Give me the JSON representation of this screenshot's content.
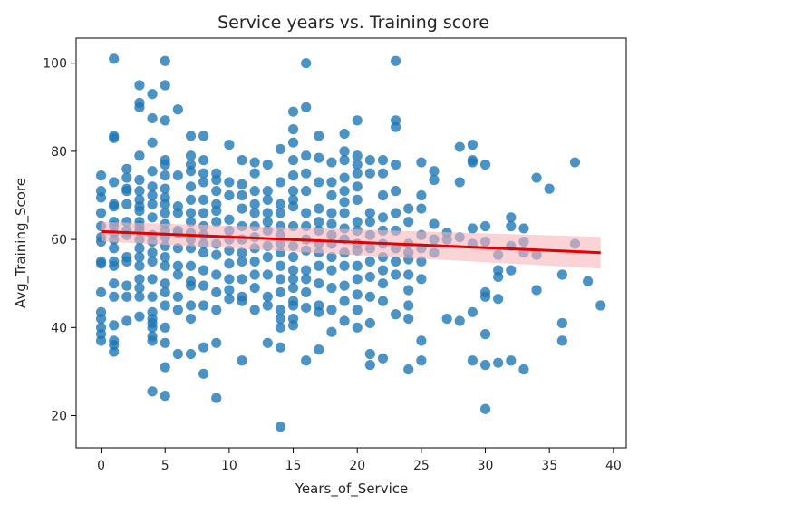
{
  "chart_data": {
    "type": "scatter",
    "title": "Service years vs. Training score",
    "xlabel": "Years_of_Service",
    "ylabel": "Avg_Training_Score",
    "xlim": [
      -1.95,
      41.0
    ],
    "ylim": [
      12.7,
      105.7
    ],
    "xticks": [
      0,
      5,
      10,
      15,
      20,
      25,
      30,
      35,
      40
    ],
    "yticks": [
      20,
      40,
      60,
      80,
      100
    ],
    "grid": false,
    "legend": "none",
    "colors": {
      "points": "#1f77b4",
      "regression_line": "#e00000",
      "confidence_band": "#f7b6bd"
    },
    "regression": {
      "x": [
        0,
        39
      ],
      "y": [
        61.8,
        57.0
      ],
      "ci_upper": [
        64.0,
        60.6
      ],
      "ci_lower": [
        59.6,
        53.4
      ]
    },
    "points": [
      [
        0,
        74.5
      ],
      [
        0,
        71
      ],
      [
        0,
        69.5
      ],
      [
        0,
        66
      ],
      [
        0,
        63
      ],
      [
        0,
        60.5
      ],
      [
        0,
        59.5
      ],
      [
        0,
        55
      ],
      [
        0,
        54.5
      ],
      [
        0,
        48
      ],
      [
        0,
        43.5
      ],
      [
        0,
        42
      ],
      [
        0,
        40
      ],
      [
        0,
        38.5
      ],
      [
        0,
        37
      ],
      [
        1,
        101
      ],
      [
        1,
        83.5
      ],
      [
        1,
        83
      ],
      [
        1,
        73
      ],
      [
        1,
        68
      ],
      [
        1,
        67.5
      ],
      [
        1,
        64
      ],
      [
        1,
        63
      ],
      [
        1,
        61.5
      ],
      [
        1,
        60
      ],
      [
        1,
        58
      ],
      [
        1,
        55
      ],
      [
        1,
        54
      ],
      [
        1,
        50
      ],
      [
        1,
        47
      ],
      [
        1,
        40.5
      ],
      [
        1,
        37
      ],
      [
        1,
        36
      ],
      [
        1,
        34.5
      ],
      [
        2,
        76
      ],
      [
        2,
        74
      ],
      [
        2,
        71.5
      ],
      [
        2,
        71
      ],
      [
        2,
        68
      ],
      [
        2,
        64
      ],
      [
        2,
        62
      ],
      [
        2,
        61
      ],
      [
        2,
        56
      ],
      [
        2,
        55
      ],
      [
        2,
        49.5
      ],
      [
        2,
        47
      ],
      [
        2,
        41.5
      ],
      [
        3,
        95
      ],
      [
        3,
        91
      ],
      [
        3,
        90
      ],
      [
        3,
        79
      ],
      [
        3,
        73.5
      ],
      [
        3,
        71
      ],
      [
        3,
        69
      ],
      [
        3,
        67.5
      ],
      [
        3,
        66.5
      ],
      [
        3,
        64
      ],
      [
        3,
        63
      ],
      [
        3,
        62
      ],
      [
        3,
        60
      ],
      [
        3,
        58
      ],
      [
        3,
        56
      ],
      [
        3,
        54
      ],
      [
        3,
        51
      ],
      [
        3,
        49
      ],
      [
        3,
        47
      ],
      [
        3,
        42.5
      ],
      [
        4,
        93
      ],
      [
        4,
        87.5
      ],
      [
        4,
        82
      ],
      [
        4,
        75.5
      ],
      [
        4,
        72
      ],
      [
        4,
        70
      ],
      [
        4,
        68
      ],
      [
        4,
        65
      ],
      [
        4,
        61
      ],
      [
        4,
        59.5
      ],
      [
        4,
        57
      ],
      [
        4,
        55
      ],
      [
        4,
        51
      ],
      [
        4,
        47
      ],
      [
        4,
        43.5
      ],
      [
        4,
        42
      ],
      [
        4,
        41
      ],
      [
        4,
        40
      ],
      [
        4,
        38
      ],
      [
        4,
        37
      ],
      [
        4,
        25.5
      ],
      [
        5,
        100.5
      ],
      [
        5,
        95
      ],
      [
        5,
        87
      ],
      [
        5,
        78
      ],
      [
        5,
        77
      ],
      [
        5,
        74.5
      ],
      [
        5,
        71.5
      ],
      [
        5,
        69.5
      ],
      [
        5,
        68
      ],
      [
        5,
        66
      ],
      [
        5,
        63.5
      ],
      [
        5,
        62
      ],
      [
        5,
        60.5
      ],
      [
        5,
        58.5
      ],
      [
        5,
        56
      ],
      [
        5,
        54
      ],
      [
        5,
        50
      ],
      [
        5,
        48
      ],
      [
        5,
        45
      ],
      [
        5,
        40
      ],
      [
        5,
        36.5
      ],
      [
        5,
        31
      ],
      [
        5,
        24.5
      ],
      [
        6,
        89.5
      ],
      [
        6,
        74.5
      ],
      [
        6,
        67.5
      ],
      [
        6,
        66
      ],
      [
        6,
        62
      ],
      [
        6,
        61.5
      ],
      [
        6,
        58
      ],
      [
        6,
        54
      ],
      [
        6,
        52
      ],
      [
        6,
        47
      ],
      [
        6,
        44
      ],
      [
        6,
        34
      ],
      [
        7,
        83.5
      ],
      [
        7,
        79
      ],
      [
        7,
        77
      ],
      [
        7,
        75.5
      ],
      [
        7,
        72
      ],
      [
        7,
        69
      ],
      [
        7,
        66
      ],
      [
        7,
        64
      ],
      [
        7,
        61.5
      ],
      [
        7,
        60
      ],
      [
        7,
        58
      ],
      [
        7,
        54
      ],
      [
        7,
        50.5
      ],
      [
        7,
        49.5
      ],
      [
        7,
        45
      ],
      [
        7,
        42
      ],
      [
        7,
        34
      ],
      [
        8,
        83.5
      ],
      [
        8,
        78
      ],
      [
        8,
        75
      ],
      [
        8,
        73
      ],
      [
        8,
        69
      ],
      [
        8,
        66
      ],
      [
        8,
        63
      ],
      [
        8,
        61
      ],
      [
        8,
        59
      ],
      [
        8,
        57
      ],
      [
        8,
        53
      ],
      [
        8,
        49.5
      ],
      [
        8,
        45
      ],
      [
        8,
        35.5
      ],
      [
        8,
        29.5
      ],
      [
        9,
        75
      ],
      [
        9,
        73.5
      ],
      [
        9,
        71
      ],
      [
        9,
        68
      ],
      [
        9,
        66.5
      ],
      [
        9,
        64
      ],
      [
        9,
        59
      ],
      [
        9,
        56.5
      ],
      [
        9,
        52
      ],
      [
        9,
        48
      ],
      [
        9,
        44
      ],
      [
        9,
        36.5
      ],
      [
        9,
        24
      ],
      [
        10,
        81.5
      ],
      [
        10,
        73
      ],
      [
        10,
        70
      ],
      [
        10,
        64.5
      ],
      [
        10,
        62
      ],
      [
        10,
        60
      ],
      [
        10,
        57.5
      ],
      [
        10,
        54.5
      ],
      [
        10,
        51
      ],
      [
        10,
        48.5
      ],
      [
        10,
        46.5
      ],
      [
        11,
        78
      ],
      [
        11,
        72.5
      ],
      [
        11,
        70
      ],
      [
        11,
        67
      ],
      [
        11,
        63
      ],
      [
        11,
        60
      ],
      [
        11,
        57
      ],
      [
        11,
        55
      ],
      [
        11,
        51
      ],
      [
        11,
        47
      ],
      [
        11,
        46
      ],
      [
        11,
        32.5
      ],
      [
        12,
        77.5
      ],
      [
        12,
        75
      ],
      [
        12,
        71
      ],
      [
        12,
        68
      ],
      [
        12,
        66
      ],
      [
        12,
        63
      ],
      [
        12,
        60.5
      ],
      [
        12,
        58
      ],
      [
        12,
        55
      ],
      [
        12,
        52
      ],
      [
        12,
        49
      ],
      [
        12,
        44
      ],
      [
        13,
        77
      ],
      [
        13,
        71
      ],
      [
        13,
        69
      ],
      [
        13,
        66
      ],
      [
        13,
        64
      ],
      [
        13,
        62
      ],
      [
        13,
        58.5
      ],
      [
        13,
        56
      ],
      [
        13,
        52
      ],
      [
        13,
        47
      ],
      [
        13,
        45
      ],
      [
        13,
        36.5
      ],
      [
        14,
        80.5
      ],
      [
        14,
        73
      ],
      [
        14,
        68
      ],
      [
        14,
        66
      ],
      [
        14,
        63
      ],
      [
        14,
        61
      ],
      [
        14,
        59
      ],
      [
        14,
        57
      ],
      [
        14,
        54
      ],
      [
        14,
        51
      ],
      [
        14,
        48
      ],
      [
        14,
        44
      ],
      [
        14,
        42
      ],
      [
        14,
        40
      ],
      [
        14,
        35.5
      ],
      [
        14,
        17.5
      ],
      [
        15,
        89
      ],
      [
        15,
        85
      ],
      [
        15,
        82
      ],
      [
        15,
        78
      ],
      [
        15,
        74.5
      ],
      [
        15,
        71
      ],
      [
        15,
        69
      ],
      [
        15,
        67.5
      ],
      [
        15,
        63
      ],
      [
        15,
        58.5
      ],
      [
        15,
        56
      ],
      [
        15,
        53
      ],
      [
        15,
        51
      ],
      [
        15,
        49
      ],
      [
        15,
        46
      ],
      [
        15,
        45
      ],
      [
        15,
        42
      ],
      [
        15,
        40.5
      ],
      [
        16,
        100
      ],
      [
        16,
        90
      ],
      [
        16,
        79
      ],
      [
        16,
        75
      ],
      [
        16,
        71
      ],
      [
        16,
        66
      ],
      [
        16,
        63
      ],
      [
        16,
        60
      ],
      [
        16,
        57.5
      ],
      [
        16,
        53
      ],
      [
        16,
        51
      ],
      [
        16,
        48
      ],
      [
        16,
        44.5
      ],
      [
        16,
        32.5
      ],
      [
        17,
        83.5
      ],
      [
        17,
        78.5
      ],
      [
        17,
        73
      ],
      [
        17,
        67
      ],
      [
        17,
        64
      ],
      [
        17,
        62
      ],
      [
        17,
        59
      ],
      [
        17,
        57
      ],
      [
        17,
        54
      ],
      [
        17,
        50
      ],
      [
        17,
        45
      ],
      [
        17,
        43.5
      ],
      [
        17,
        35
      ],
      [
        18,
        77.5
      ],
      [
        18,
        73
      ],
      [
        18,
        70
      ],
      [
        18,
        66
      ],
      [
        18,
        63.5
      ],
      [
        18,
        61
      ],
      [
        18,
        59
      ],
      [
        18,
        56
      ],
      [
        18,
        53
      ],
      [
        18,
        49
      ],
      [
        18,
        44
      ],
      [
        18,
        39
      ],
      [
        19,
        84
      ],
      [
        19,
        80
      ],
      [
        19,
        78
      ],
      [
        19,
        74
      ],
      [
        19,
        71
      ],
      [
        19,
        68.5
      ],
      [
        19,
        66
      ],
      [
        19,
        62.5
      ],
      [
        19,
        60
      ],
      [
        19,
        57
      ],
      [
        19,
        54
      ],
      [
        19,
        49.5
      ],
      [
        19,
        46
      ],
      [
        19,
        41.5
      ],
      [
        20,
        87
      ],
      [
        20,
        79
      ],
      [
        20,
        77
      ],
      [
        20,
        75
      ],
      [
        20,
        72
      ],
      [
        20,
        69
      ],
      [
        20,
        64
      ],
      [
        20,
        62
      ],
      [
        20,
        59
      ],
      [
        20,
        57.5
      ],
      [
        20,
        54
      ],
      [
        20,
        51
      ],
      [
        20,
        47.5
      ],
      [
        20,
        44
      ],
      [
        20,
        40
      ],
      [
        21,
        78
      ],
      [
        21,
        75
      ],
      [
        21,
        66
      ],
      [
        21,
        64
      ],
      [
        21,
        61
      ],
      [
        21,
        58
      ],
      [
        21,
        55
      ],
      [
        21,
        51.5
      ],
      [
        21,
        47
      ],
      [
        21,
        41
      ],
      [
        21,
        34
      ],
      [
        21,
        31.5
      ],
      [
        22,
        78
      ],
      [
        22,
        75
      ],
      [
        22,
        70
      ],
      [
        22,
        65
      ],
      [
        22,
        62
      ],
      [
        22,
        59
      ],
      [
        22,
        56
      ],
      [
        22,
        53
      ],
      [
        22,
        50
      ],
      [
        22,
        46
      ],
      [
        22,
        33
      ],
      [
        23,
        100.5
      ],
      [
        23,
        87
      ],
      [
        23,
        85.5
      ],
      [
        23,
        77
      ],
      [
        23,
        71
      ],
      [
        23,
        66
      ],
      [
        23,
        62
      ],
      [
        23,
        58
      ],
      [
        23,
        55
      ],
      [
        23,
        52
      ],
      [
        23,
        43
      ],
      [
        24,
        67
      ],
      [
        24,
        64
      ],
      [
        24,
        59
      ],
      [
        24,
        57
      ],
      [
        24,
        55.5
      ],
      [
        24,
        52
      ],
      [
        24,
        48.5
      ],
      [
        24,
        45
      ],
      [
        24,
        42
      ],
      [
        24,
        30.5
      ],
      [
        25,
        77.5
      ],
      [
        25,
        70
      ],
      [
        25,
        67
      ],
      [
        25,
        61
      ],
      [
        25,
        58
      ],
      [
        25,
        55
      ],
      [
        25,
        51
      ],
      [
        25,
        37
      ],
      [
        25,
        32.5
      ],
      [
        26,
        75.5
      ],
      [
        26,
        73.5
      ],
      [
        26,
        63.5
      ],
      [
        26,
        60
      ],
      [
        26,
        57
      ],
      [
        27,
        61.5
      ],
      [
        27,
        60
      ],
      [
        27,
        42
      ],
      [
        28,
        81
      ],
      [
        28,
        73
      ],
      [
        28,
        60.5
      ],
      [
        28,
        41.5
      ],
      [
        29,
        81.5
      ],
      [
        29,
        78
      ],
      [
        29,
        77.5
      ],
      [
        29,
        62.5
      ],
      [
        29,
        59
      ],
      [
        29,
        43.5
      ],
      [
        29,
        32.5
      ],
      [
        30,
        77
      ],
      [
        30,
        63
      ],
      [
        30,
        59.5
      ],
      [
        30,
        48
      ],
      [
        30,
        47
      ],
      [
        30,
        38.5
      ],
      [
        30,
        31.5
      ],
      [
        30,
        21.5
      ],
      [
        31,
        56.5
      ],
      [
        31,
        53
      ],
      [
        31,
        51.5
      ],
      [
        31,
        46.5
      ],
      [
        31,
        32
      ],
      [
        32,
        65
      ],
      [
        32,
        63
      ],
      [
        32,
        58.5
      ],
      [
        32,
        53
      ],
      [
        32,
        32.5
      ],
      [
        33,
        62.5
      ],
      [
        33,
        59.5
      ],
      [
        33,
        57
      ],
      [
        33,
        30.5
      ],
      [
        34,
        74
      ],
      [
        34,
        56.5
      ],
      [
        34,
        48.5
      ],
      [
        35,
        71.5
      ],
      [
        36,
        52
      ],
      [
        36,
        41
      ],
      [
        36,
        37
      ],
      [
        37,
        77.5
      ],
      [
        37,
        59
      ],
      [
        38,
        50.5
      ],
      [
        39,
        45
      ]
    ]
  }
}
